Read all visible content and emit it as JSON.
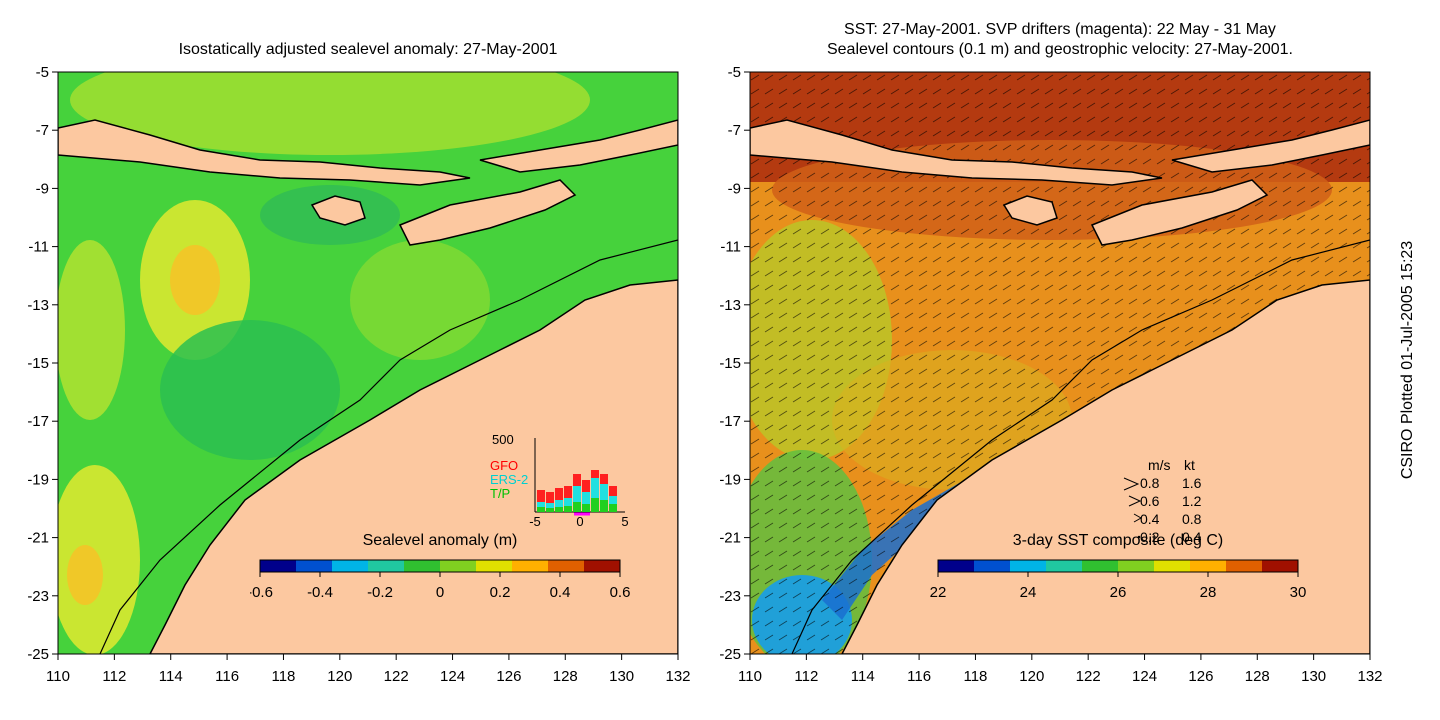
{
  "left_map": {
    "title": "Isostatically adjusted sealevel anomaly: 27-May-2001",
    "colorbar": {
      "label": "Sealevel anomaly (m)",
      "ticks": [
        "-0.6",
        "-0.4",
        "-0.2",
        "0",
        "0.2",
        "0.4",
        "0.6"
      ],
      "colors": [
        "#00008b",
        "#0050d0",
        "#00b4e6",
        "#20c8a0",
        "#30c030",
        "#80d020",
        "#e0e000",
        "#ffb000",
        "#e06000",
        "#a01000"
      ]
    },
    "inset": {
      "max_label": "500",
      "x_ticks": [
        "-5",
        "0",
        "5"
      ],
      "legend": [
        {
          "label": "GFO",
          "color": "#ff0000"
        },
        {
          "label": "ERS-2",
          "color": "#00e0e0"
        },
        {
          "label": "T/P",
          "color": "#00d000"
        }
      ]
    }
  },
  "right_map": {
    "title_line1": "SST: 27-May-2001. SVP drifters (magenta): 22 May - 31 May",
    "title_line2": "Sealevel contours (0.1 m) and geostrophic velocity: 27-May-2001.",
    "colorbar": {
      "label": "3-day SST composite (deg C)",
      "ticks": [
        "22",
        "24",
        "26",
        "28",
        "30"
      ],
      "colors": [
        "#00008b",
        "#0050d0",
        "#00b4e6",
        "#20c8a0",
        "#30c030",
        "#80d020",
        "#e0e000",
        "#ffb000",
        "#e06000",
        "#a01000"
      ]
    },
    "velocity_legend": {
      "header_ms": "m/s",
      "header_kt": "kt",
      "rows": [
        {
          "ms": "0.8",
          "kt": "1.6"
        },
        {
          "ms": "0.6",
          "kt": "1.2"
        },
        {
          "ms": "0.4",
          "kt": "0.8"
        },
        {
          "ms": "0.2",
          "kt": "0.4"
        }
      ]
    }
  },
  "axes": {
    "y_ticks": [
      "-5",
      "-7",
      "-9",
      "-11",
      "-13",
      "-15",
      "-17",
      "-19",
      "-21",
      "-23",
      "-25"
    ],
    "x_ticks": [
      "110",
      "112",
      "114",
      "116",
      "118",
      "120",
      "122",
      "124",
      "126",
      "128",
      "130",
      "132"
    ]
  },
  "side_label": "CSIRO Plotted 01-Jul-2005 15:23",
  "colors": {
    "land": "#fcc8a0",
    "sla_green": "#3cd83c",
    "sst_orange": "#f09020"
  }
}
